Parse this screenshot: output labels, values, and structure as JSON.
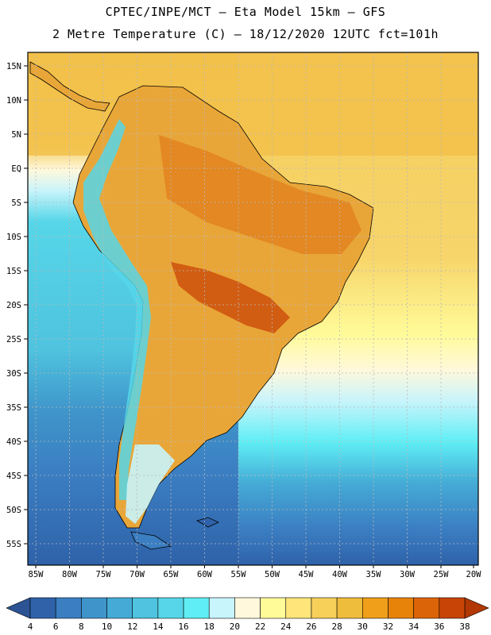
{
  "header": {
    "line1": "CPTEC/INPE/MCT –  Eta Model 15km – GFS",
    "line2": "2 Metre Temperature (C) – 18/12/2020 12UTC fct=101h"
  },
  "map": {
    "lat_ticks": [
      "15N",
      "10N",
      "5N",
      "EQ",
      "5S",
      "10S",
      "15S",
      "20S",
      "25S",
      "30S",
      "35S",
      "40S",
      "45S",
      "50S",
      "55S"
    ],
    "lon_ticks": [
      "85W",
      "80W",
      "75W",
      "70W",
      "65W",
      "60W",
      "55W",
      "50W",
      "45W",
      "40W",
      "35W",
      "30W",
      "25W",
      "20W"
    ]
  },
  "colorbar": {
    "labels": [
      "4",
      "6",
      "8",
      "10",
      "12",
      "14",
      "16",
      "18",
      "20",
      "22",
      "24",
      "26",
      "28",
      "30",
      "32",
      "34",
      "36",
      "38"
    ],
    "colors": [
      "#2f62a9",
      "#3b7ec2",
      "#3f95ca",
      "#45abd6",
      "#4fc3df",
      "#56d6e8",
      "#5feef5",
      "#c8f4fb",
      "#fff8dc",
      "#fffb99",
      "#ffe57a",
      "#f7d05a",
      "#efbd3c",
      "#ef9f1a",
      "#e8830a",
      "#dc6408",
      "#c84406"
    ],
    "low_arrow_color": "#2c5394",
    "high_arrow_color": "#b23805"
  }
}
